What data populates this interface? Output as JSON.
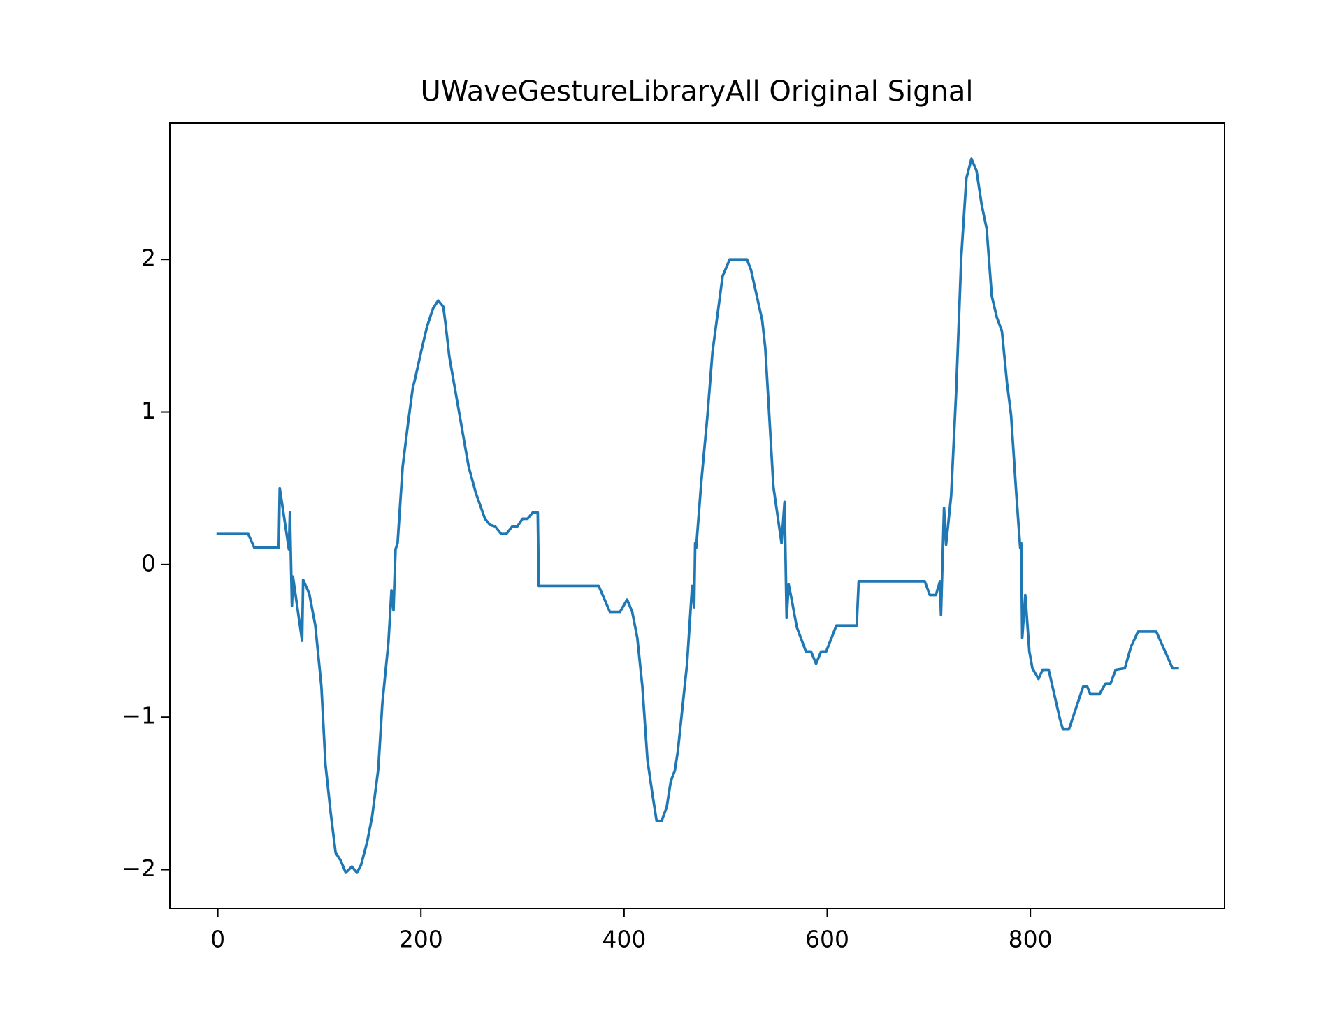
{
  "chart_data": {
    "type": "line",
    "title": "UWaveGestureLibraryAll Original Signal",
    "xlim": [
      -47.2,
      991.2
    ],
    "ylim": [
      -2.254,
      2.894
    ],
    "xticks": [
      0,
      200,
      400,
      600,
      800
    ],
    "yticks": [
      {
        "value": -2,
        "label": "−2"
      },
      {
        "value": -1,
        "label": "−1"
      },
      0,
      1,
      2
    ],
    "grid": false,
    "series": [
      {
        "color": "#1f77b4",
        "x": [
          0,
          30,
          36,
          60,
          61,
          70,
          71,
          73,
          74,
          83,
          84,
          90,
          96,
          102,
          106,
          111,
          116,
          121,
          126,
          132,
          137,
          141,
          147,
          152,
          158,
          162,
          168,
          171,
          173,
          175,
          177,
          182,
          187,
          192,
          194,
          200,
          206,
          212,
          217,
          222,
          224,
          228,
          247,
          254,
          263,
          268,
          273,
          279,
          284,
          290,
          295,
          300,
          305,
          310,
          315,
          316,
          375,
          386,
          396,
          403,
          408,
          413,
          418,
          423,
          428,
          432,
          437,
          442,
          446,
          450,
          453,
          462,
          467,
          469,
          470,
          471,
          476,
          482,
          487,
          497,
          504,
          521,
          525,
          536,
          539,
          543,
          547,
          555,
          558,
          560,
          562,
          565,
          570,
          579,
          584,
          589,
          594,
          599,
          609,
          629,
          631,
          696,
          701,
          707,
          711,
          712,
          715,
          717,
          722,
          727,
          732,
          737,
          742,
          747,
          752,
          757,
          762,
          767,
          772,
          777,
          781,
          786,
          790,
          791,
          792,
          795,
          799,
          802,
          808,
          812,
          818,
          829,
          832,
          838,
          845,
          852,
          856,
          859,
          868,
          874,
          879,
          884,
          893,
          899,
          906,
          924,
          940,
          945
        ],
        "values": [
          0.2,
          0.2,
          0.11,
          0.11,
          0.5,
          0.1,
          0.34,
          -0.27,
          -0.08,
          -0.5,
          -0.1,
          -0.19,
          -0.4,
          -0.8,
          -1.31,
          -1.62,
          -1.89,
          -1.94,
          -2.02,
          -1.98,
          -2.02,
          -1.97,
          -1.82,
          -1.65,
          -1.34,
          -0.91,
          -0.51,
          -0.17,
          -0.3,
          0.1,
          0.14,
          0.64,
          0.91,
          1.16,
          1.21,
          1.39,
          1.56,
          1.68,
          1.73,
          1.69,
          1.59,
          1.36,
          0.64,
          0.47,
          0.3,
          0.26,
          0.25,
          0.2,
          0.2,
          0.25,
          0.25,
          0.3,
          0.3,
          0.34,
          0.34,
          -0.14,
          -0.14,
          -0.31,
          -0.31,
          -0.23,
          -0.31,
          -0.48,
          -0.8,
          -1.28,
          -1.51,
          -1.68,
          -1.68,
          -1.59,
          -1.42,
          -1.35,
          -1.22,
          -0.65,
          -0.14,
          -0.28,
          0.14,
          0.11,
          0.54,
          0.97,
          1.39,
          1.89,
          2.0,
          2.0,
          1.93,
          1.6,
          1.42,
          0.97,
          0.51,
          0.14,
          0.41,
          -0.35,
          -0.13,
          -0.23,
          -0.41,
          -0.57,
          -0.57,
          -0.65,
          -0.57,
          -0.57,
          -0.4,
          -0.4,
          -0.11,
          -0.11,
          -0.2,
          -0.2,
          -0.11,
          -0.33,
          0.37,
          0.13,
          0.45,
          1.14,
          2.02,
          2.53,
          2.66,
          2.58,
          2.36,
          2.2,
          1.76,
          1.62,
          1.53,
          1.19,
          0.98,
          0.48,
          0.11,
          0.14,
          -0.48,
          -0.2,
          -0.57,
          -0.68,
          -0.75,
          -0.69,
          -0.69,
          -1.01,
          -1.08,
          -1.08,
          -0.94,
          -0.8,
          -0.8,
          -0.85,
          -0.85,
          -0.78,
          -0.78,
          -0.69,
          -0.68,
          -0.54,
          -0.44,
          -0.44,
          -0.68,
          -0.68
        ]
      }
    ]
  }
}
